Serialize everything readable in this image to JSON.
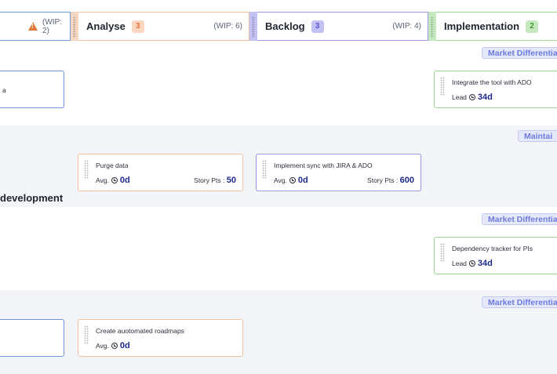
{
  "columns": [
    {
      "id": "prev",
      "title": "",
      "count": "",
      "wip": "(WIP: 2)",
      "warning": true
    },
    {
      "id": "analyse",
      "title": "Analyse",
      "count": "3",
      "wip": "(WIP: 6)"
    },
    {
      "id": "backlog",
      "title": "Backlog",
      "count": "3",
      "wip": "(WIP: 4)"
    },
    {
      "id": "implementation",
      "title": "Implementation",
      "count": "2",
      "wip": ""
    }
  ],
  "colors": {
    "analyse": "#f1c09f",
    "backlog": "#9a95e6",
    "implementation": "#9ad68e",
    "prev": "#6e95d8",
    "tag_text": "#6b7be0",
    "value_text": "#1e2a8c",
    "warning": "#e07b3b"
  },
  "lanes": [
    {
      "title": "",
      "tag": "Market Differentia"
    },
    {
      "title": "",
      "tag": "Maintai"
    },
    {
      "title": "development",
      "tag": "Market Differentia"
    },
    {
      "title": "",
      "tag": "Market Differentia"
    }
  ],
  "cards": {
    "lane1_prev": {
      "title": "a",
      "label": "",
      "value": ""
    },
    "lane1_impl": {
      "title": "Integrate the tool with ADO",
      "label": "Lead",
      "value": "34d"
    },
    "lane2_analyse": {
      "title": "Purge data",
      "label": "Avg.",
      "value": "0d",
      "pts_label": "Story Pts :",
      "pts_value": "50"
    },
    "lane2_backlog": {
      "title": "Implement sync with JIRA & ADO",
      "label": "Avg.",
      "value": "0d",
      "pts_label": "Story Pts :",
      "pts_value": "600"
    },
    "lane3_impl": {
      "title": "Dependency tracker for PIs",
      "label": "Lead",
      "value": "34d"
    },
    "lane4_prev": {
      "title": "",
      "label": "",
      "value": ""
    },
    "lane4_analyse": {
      "title": "Create auotomated roadmaps",
      "label": "Avg.",
      "value": "0d"
    }
  },
  "icons": {
    "warning": "warning-triangle-icon",
    "clock": "clock-icon",
    "grip": "drag-handle-icon"
  }
}
